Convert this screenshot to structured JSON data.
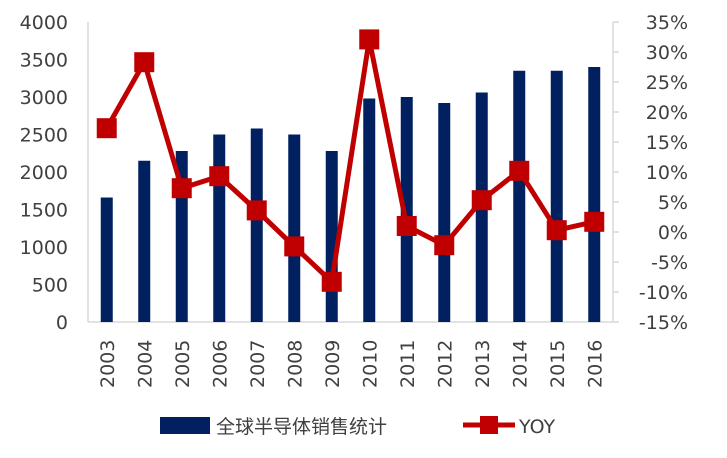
{
  "chart_data": {
    "type": "bar+line",
    "categories": [
      "2003",
      "2004",
      "2005",
      "2006",
      "2007",
      "2008",
      "2009",
      "2010",
      "2011",
      "2012",
      "2013",
      "2014",
      "2015",
      "2016"
    ],
    "series": [
      {
        "name": "全球半导体销售统计",
        "type": "bar",
        "axis": "left",
        "color": "#002060",
        "values": [
          1660,
          2150,
          2280,
          2500,
          2580,
          2500,
          2280,
          2980,
          3000,
          2920,
          3060,
          3350,
          3350,
          3400
        ]
      },
      {
        "name": "YOY",
        "type": "line",
        "axis": "right",
        "color": "#C00000",
        "values": [
          17.3,
          28.3,
          7.3,
          9.3,
          3.6,
          -2.4,
          -8.3,
          32.1,
          1.0,
          -2.2,
          5.3,
          10.2,
          0.3,
          1.7
        ]
      }
    ],
    "left_axis": {
      "ylim": [
        0,
        4000
      ],
      "ticks": [
        "0",
        "500",
        "1000",
        "1500",
        "2000",
        "2500",
        "3000",
        "3500",
        "4000"
      ]
    },
    "right_axis": {
      "ylim": [
        -15,
        35
      ],
      "unit": "%",
      "ticks": [
        "-15%",
        "-10%",
        "-5%",
        "0%",
        "5%",
        "10%",
        "15%",
        "20%",
        "25%",
        "30%",
        "35%"
      ]
    },
    "grid": false,
    "legend_position": "bottom"
  }
}
